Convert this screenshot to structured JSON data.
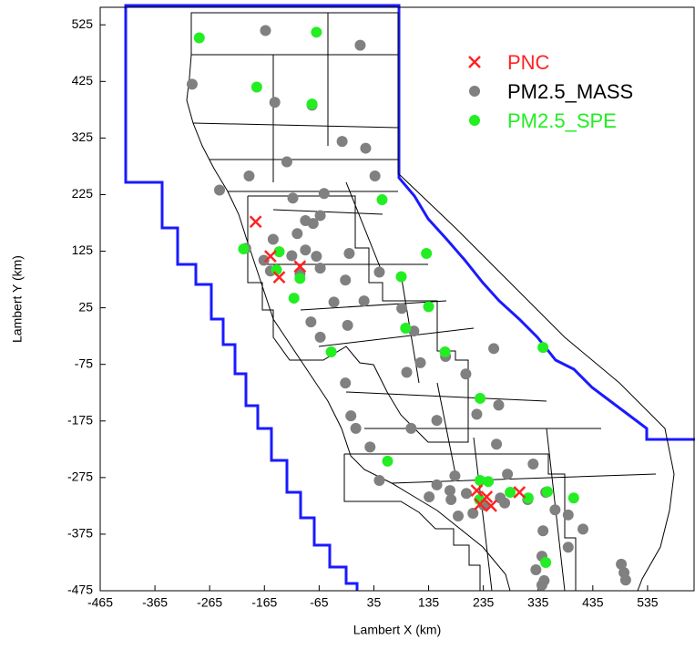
{
  "chart_data": {
    "type": "scatter",
    "x_label": "Lambert X (km)",
    "y_label": "Lambert Y (km)",
    "xlim": [
      -465,
      620
    ],
    "ylim": [
      -475,
      556
    ],
    "xticks": [
      -465,
      -365,
      -265,
      -165,
      -65,
      35,
      135,
      235,
      335,
      435,
      535
    ],
    "yticks": [
      -475,
      -375,
      -275,
      -175,
      -75,
      25,
      125,
      225,
      325,
      425,
      525
    ],
    "legend": "upper right",
    "series": [
      {
        "name": "PNC",
        "color": "#ff2222",
        "label_color": "#ff2222",
        "marker": "x",
        "x": [
          -181,
          -138,
          -100,
          -154,
          223,
          229,
          249,
          301,
          241
        ],
        "y": [
          177,
          79,
          98,
          116,
          -298,
          -322,
          -325,
          -301,
          -309
        ]
      },
      {
        "name": "PM2.5_MASS",
        "color": "#808080",
        "label_color": "#000000",
        "marker": "circle",
        "x": [
          -163,
          10,
          -297,
          -146,
          -78,
          -23,
          20,
          -124,
          -193,
          37,
          -247,
          -56,
          -113,
          -63,
          -90,
          -76,
          -105,
          -149,
          -199,
          -90,
          -115,
          -166,
          -154,
          -70,
          -10,
          -63,
          -17,
          45,
          -100,
          17,
          -38,
          86,
          -80,
          -13,
          108,
          -63,
          166,
          95,
          120,
          -17,
          254,
          203,
          223,
          263,
          -7,
          2,
          150,
          103,
          28,
          259,
          326,
          279,
          45,
          150,
          183,
          174,
          204,
          136,
          176,
          216,
          236,
          274,
          316,
          366,
          390,
          349,
          417,
          344,
          390,
          342,
          331,
          346,
          342,
          487,
          495,
          492,
          189,
          266
        ],
        "y": [
          515,
          489,
          420,
          388,
          383,
          319,
          307,
          283,
          258,
          258,
          233,
          227,
          219,
          188,
          179,
          174,
          156,
          146,
          130,
          127,
          117,
          109,
          90,
          116,
          121,
          95,
          74,
          88,
          85,
          37,
          35,
          24,
          0,
          -6,
          -16,
          -27,
          -61,
          -89,
          -72,
          -108,
          -47,
          -92,
          -163,
          -147,
          -166,
          -188,
          -174,
          -188,
          -221,
          -216,
          -251,
          -269,
          -280,
          -288,
          -272,
          -298,
          -303,
          -309,
          -314,
          -338,
          -324,
          -320,
          -314,
          -332,
          -341,
          -301,
          -366,
          -369,
          -398,
          -414,
          -438,
          -457,
          -465,
          -428,
          -456,
          -443,
          -343,
          -311
        ]
      },
      {
        "name": "PM2.5_SPE",
        "color": "#22ee22",
        "label_color": "#22ee22",
        "marker": "circle",
        "x": [
          -284,
          -70,
          -179,
          -78,
          50,
          -203,
          -138,
          -143,
          -100,
          -111,
          131,
          85,
          135,
          93,
          165,
          -43,
          344,
          229,
          60,
          229,
          228,
          284,
          317,
          352,
          400,
          349,
          244
        ],
        "y": [
          502,
          512,
          415,
          385,
          216,
          129,
          124,
          92,
          77,
          42,
          121,
          80,
          27,
          -11,
          -53,
          -53,
          -45,
          -135,
          -246,
          -280,
          -314,
          -301,
          -311,
          -300,
          -311,
          -425,
          -282
        ]
      }
    ]
  }
}
